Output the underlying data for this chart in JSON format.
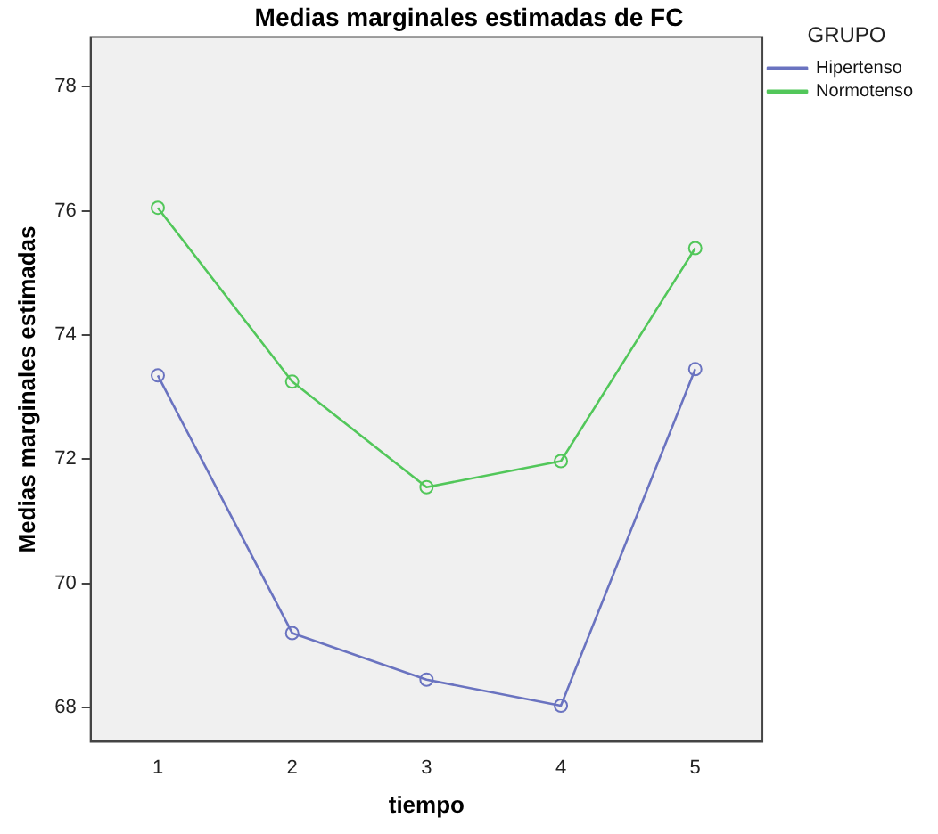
{
  "chart_data": {
    "type": "line",
    "title": "Medias marginales estimadas de FC",
    "xlabel": "tiempo",
    "ylabel": "Medias marginales estimadas",
    "legend_title": "GRUPO",
    "categories": [
      "1",
      "2",
      "3",
      "4",
      "5"
    ],
    "series": [
      {
        "name": "Hipertenso",
        "color": "#6a73c0",
        "values": [
          73.35,
          69.2,
          68.45,
          68.03,
          73.45
        ]
      },
      {
        "name": "Normotenso",
        "color": "#52c75a",
        "values": [
          76.05,
          73.25,
          71.55,
          71.97,
          75.4
        ]
      }
    ],
    "ylim": [
      67.45,
      78.8
    ],
    "yticks": [
      68,
      70,
      72,
      74,
      76,
      78
    ],
    "grid": false,
    "legend": "top right",
    "marker": "circle",
    "line_style": "solid"
  }
}
